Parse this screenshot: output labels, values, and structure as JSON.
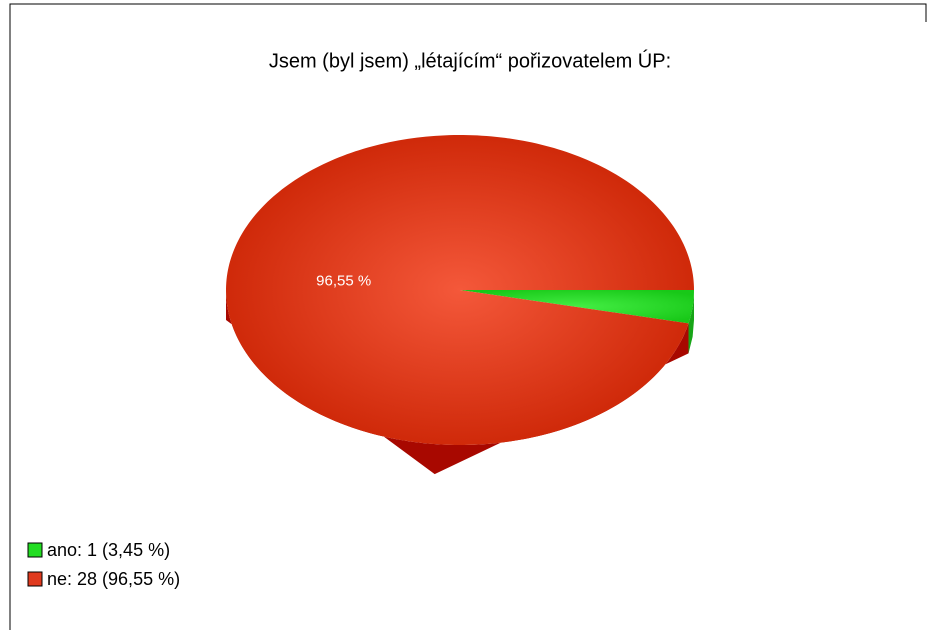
{
  "chart_data": {
    "type": "pie",
    "title": "Jsem (byl jsem) „létajícím“ pořizovatelem ÚP:",
    "categories": [
      "ano",
      "ne"
    ],
    "values": [
      3.45,
      96.55
    ],
    "value_labels": [
      null,
      "96,55 %"
    ],
    "legend_labels": [
      "ano: 1 (3,45 %)",
      "ne: 28 (96,55 %)"
    ],
    "colors": [
      "#22dd22",
      "#e03a1e"
    ],
    "side_colors": [
      "#17a517",
      "#a80800"
    ],
    "legend": "bottom-left"
  }
}
